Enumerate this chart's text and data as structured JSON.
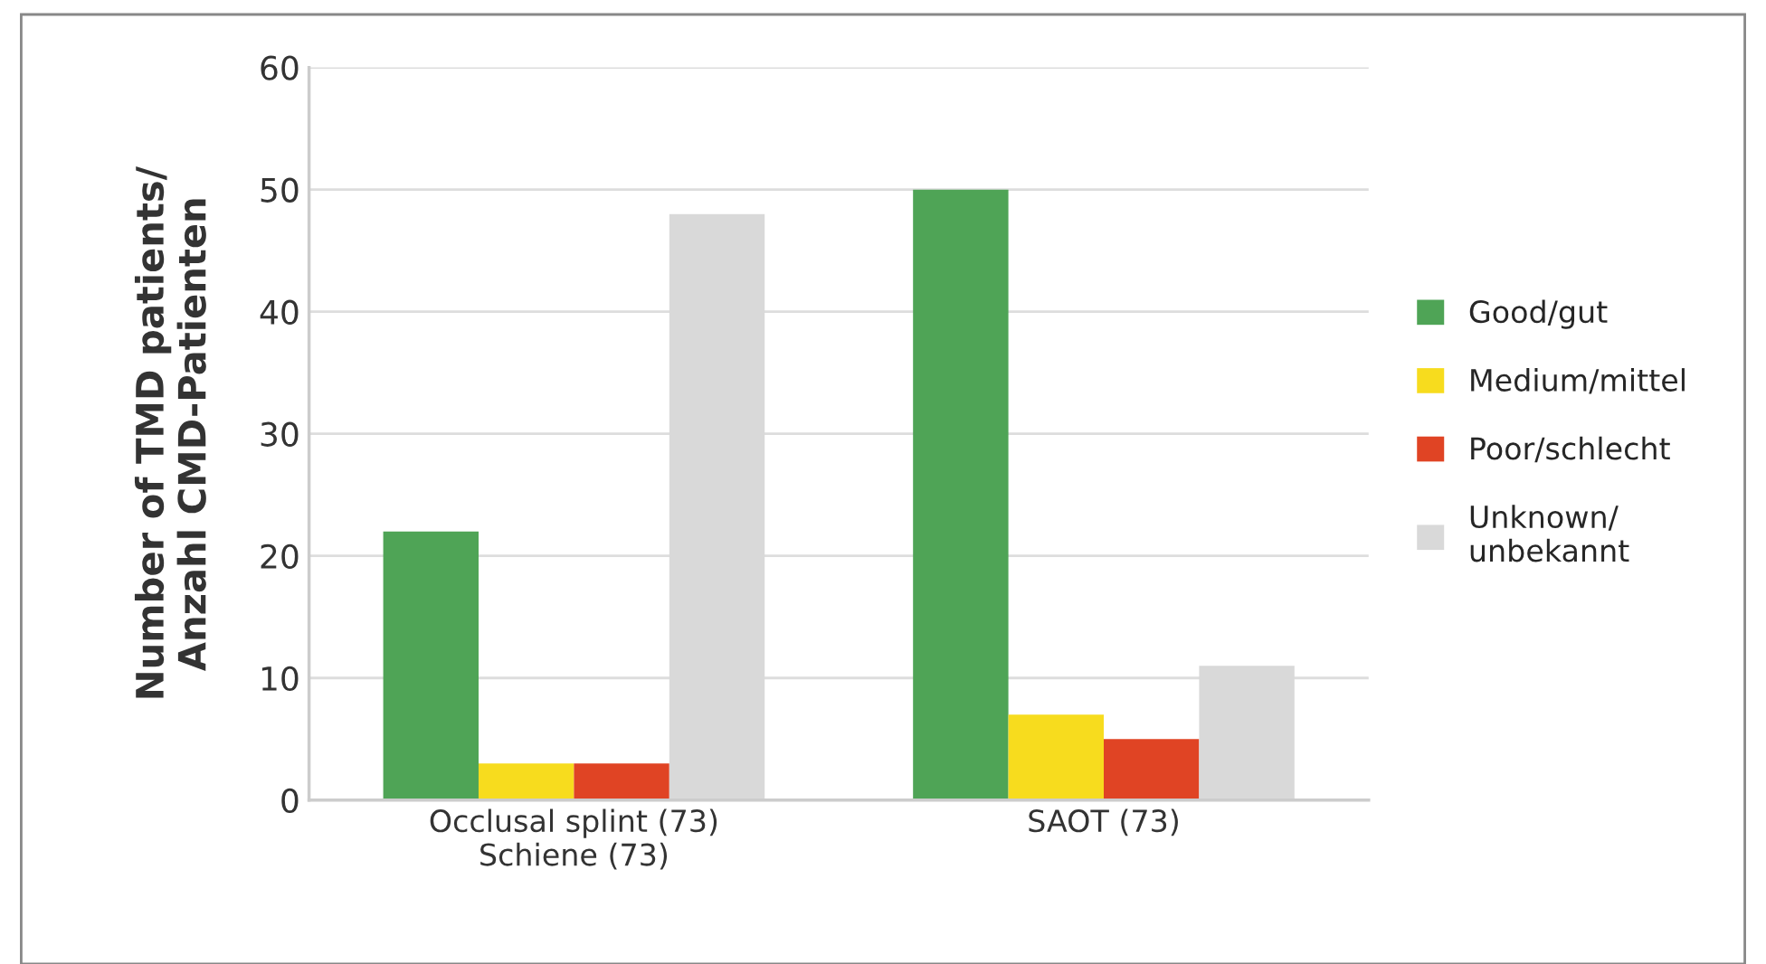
{
  "chart_data": {
    "type": "bar",
    "ylabel": "Number of TMD patients/\nAnzahl CMD-Patienten",
    "categories": [
      "Occlusal splint (73)\nSchiene (73)",
      "SAOT (73)"
    ],
    "series": [
      {
        "name": "Good/gut",
        "color": "#4fa456",
        "values": [
          22,
          50
        ]
      },
      {
        "name": "Medium/mittel",
        "color": "#f7dc1e",
        "values": [
          3,
          7
        ]
      },
      {
        "name": "Poor/schlecht",
        "color": "#e04424",
        "values": [
          3,
          5
        ]
      },
      {
        "name": "Unknown/\nunbekannt",
        "color": "#d9d9d9",
        "values": [
          48,
          11
        ]
      }
    ],
    "ylim": [
      0,
      60
    ],
    "yticks": [
      0,
      10,
      20,
      30,
      40,
      50,
      60
    ],
    "grid": "y",
    "legend": "right"
  }
}
